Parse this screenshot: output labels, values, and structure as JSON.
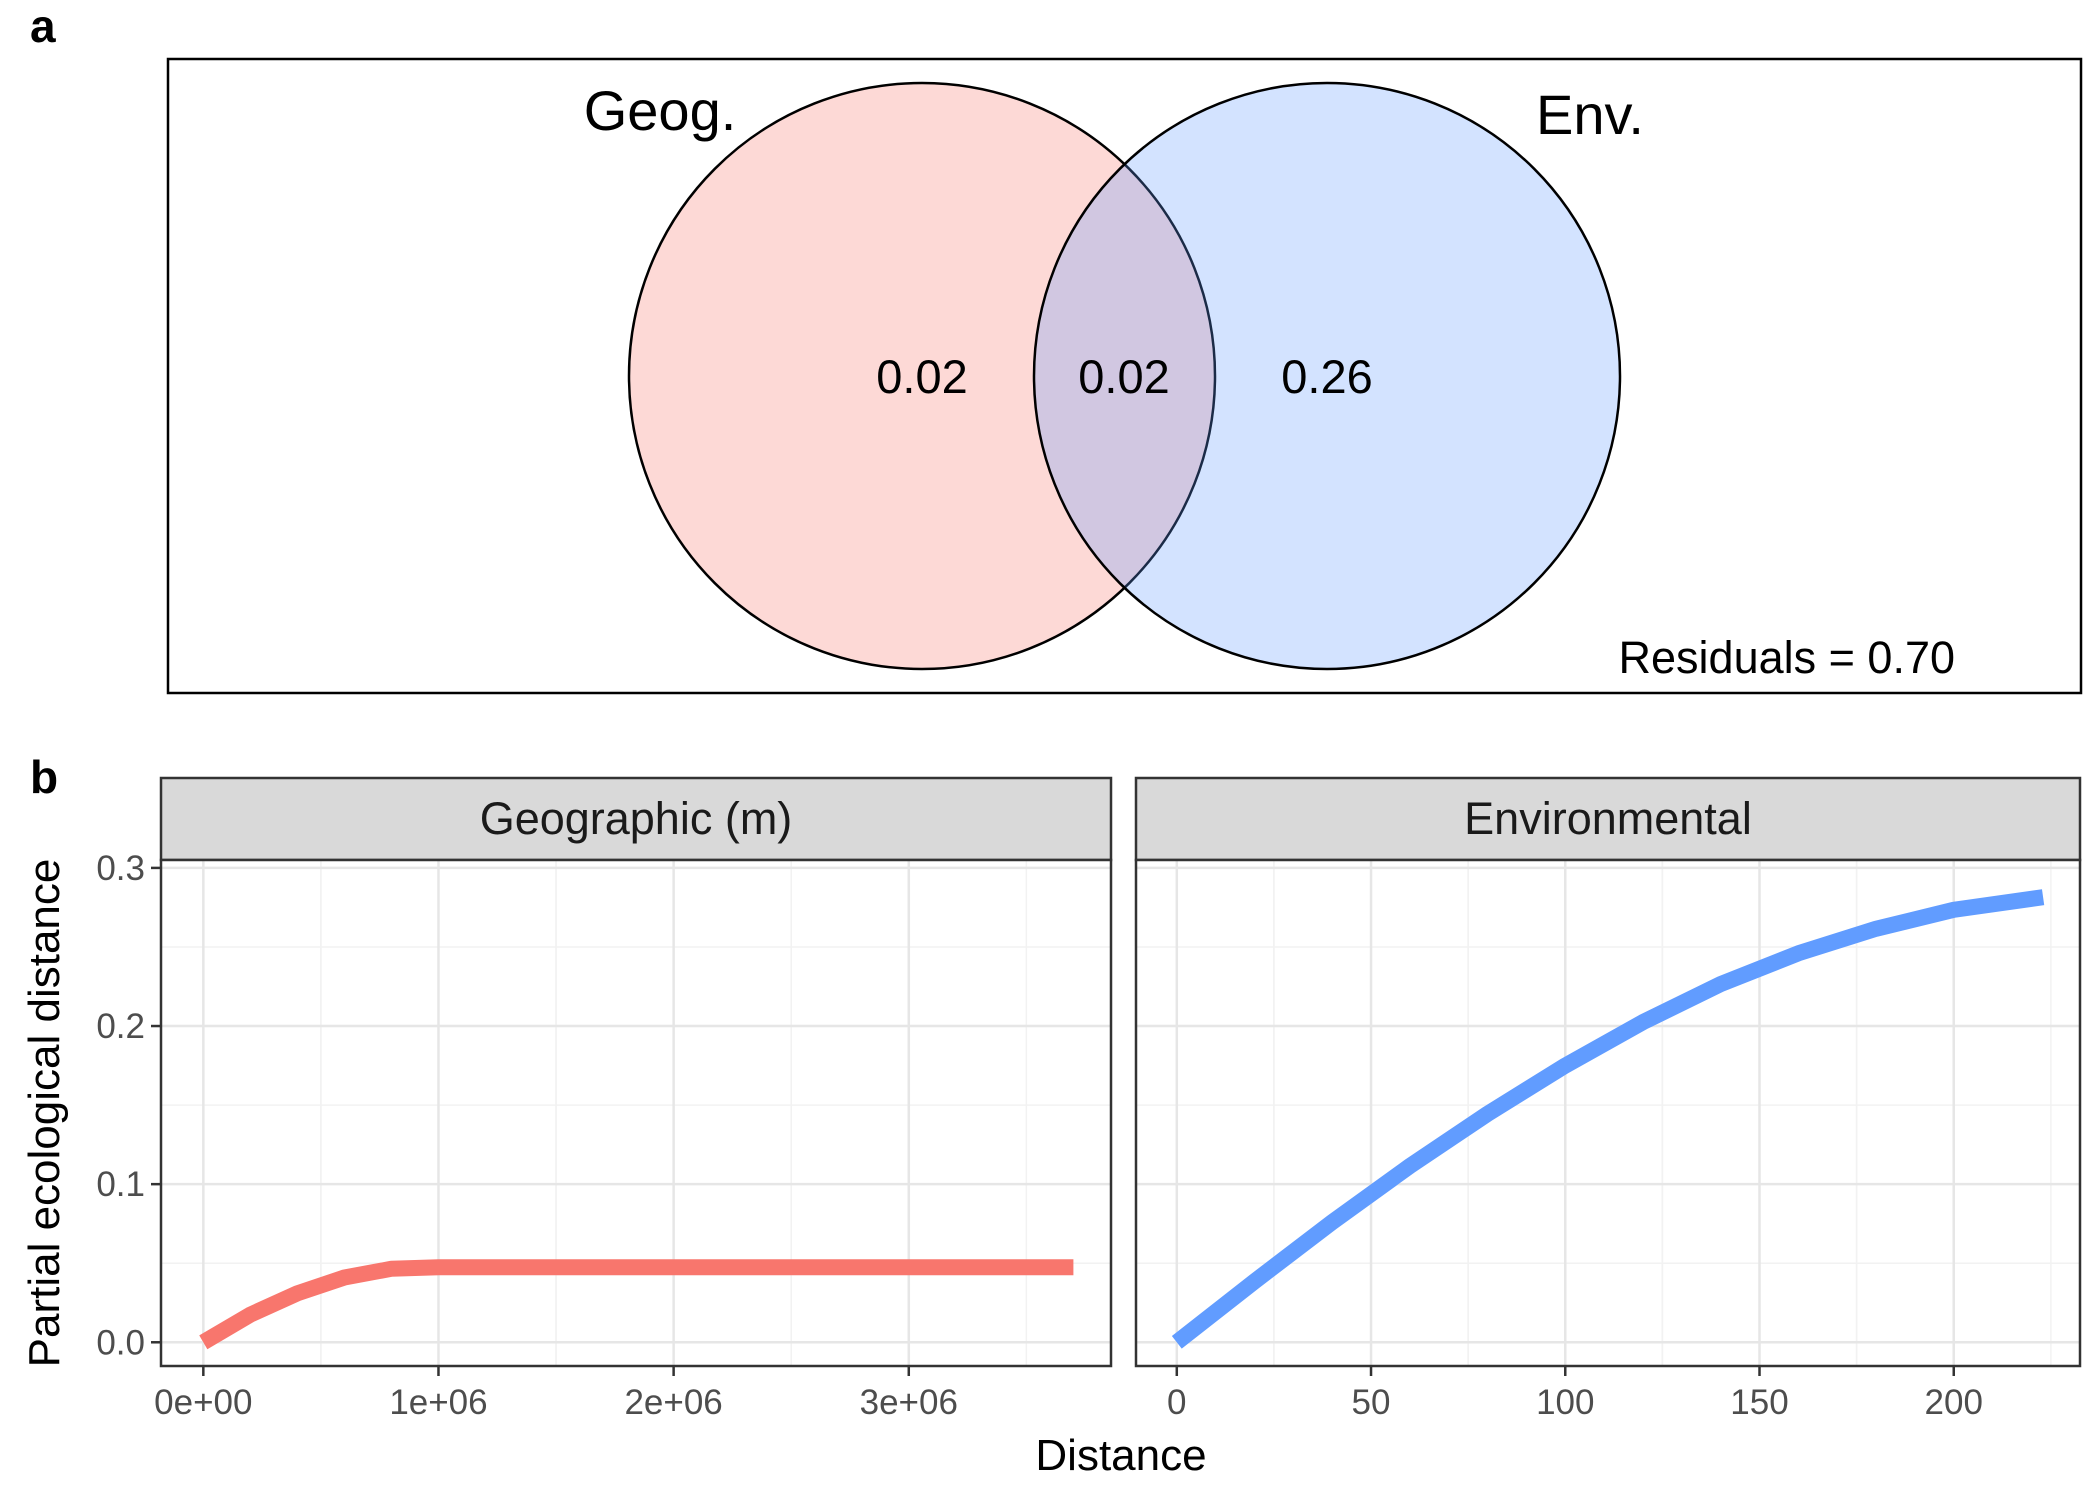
{
  "panels": {
    "a_label": "a",
    "b_label": "b"
  },
  "venn": {
    "sets": [
      {
        "name": "Geog.",
        "unique": "0.02",
        "color": "#F8766D"
      },
      {
        "name": "Env.",
        "unique": "0.26",
        "color": "#619CFF"
      }
    ],
    "overlap": "0.02",
    "residuals": "Residuals = 0.70"
  },
  "chart_data": [
    {
      "type": "line",
      "facet": "Geographic (m)",
      "color": "#F8766D",
      "x": [
        0,
        200000,
        400000,
        600000,
        800000,
        1000000,
        1500000,
        2000000,
        2500000,
        3000000,
        3700000
      ],
      "y": [
        0.0,
        0.0175,
        0.031,
        0.041,
        0.0465,
        0.0475,
        0.0475,
        0.0475,
        0.0475,
        0.0475,
        0.0475
      ],
      "xlim": [
        -180000,
        3860000
      ],
      "ylim": [
        -0.015,
        0.305
      ],
      "xticks": [
        0,
        1000000,
        2000000,
        3000000
      ],
      "xtick_labels": [
        "0e+00",
        "1e+06",
        "2e+06",
        "3e+06"
      ],
      "yticks": [
        0.0,
        0.1,
        0.2,
        0.3
      ],
      "ytick_labels": [
        "0.0",
        "0.1",
        "0.2",
        "0.3"
      ]
    },
    {
      "type": "line",
      "facet": "Environmental",
      "color": "#619CFF",
      "x": [
        0,
        20,
        40,
        60,
        80,
        100,
        120,
        140,
        160,
        180,
        200,
        223
      ],
      "y": [
        0.0,
        0.0385,
        0.076,
        0.1115,
        0.1445,
        0.175,
        0.2025,
        0.2265,
        0.246,
        0.2615,
        0.2735,
        0.2815
      ],
      "xlim": [
        -10.5,
        232.5
      ],
      "ylim": [
        -0.015,
        0.305
      ],
      "xticks": [
        0,
        50,
        100,
        150,
        200
      ],
      "xtick_labels": [
        "0",
        "50",
        "100",
        "150",
        "200"
      ],
      "yticks": [
        0.0,
        0.1,
        0.2,
        0.3
      ],
      "ytick_labels": [
        "0.0",
        "0.1",
        "0.2",
        "0.3"
      ]
    }
  ],
  "axes": {
    "xlabel": "Distance",
    "ylabel": "Partial ecological distance"
  },
  "grid": true
}
